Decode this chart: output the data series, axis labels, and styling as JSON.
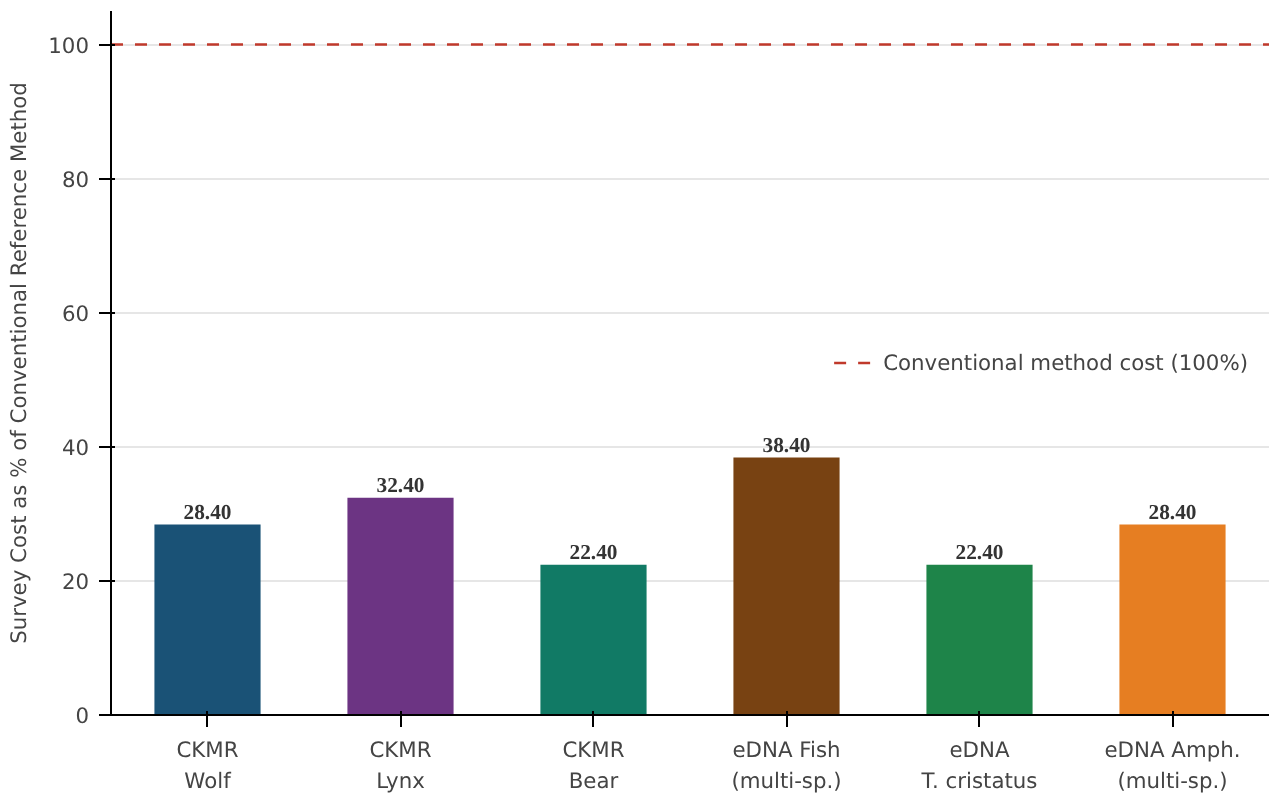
{
  "chart_data": {
    "type": "bar",
    "ylabel": "Survey Cost as % of Conventional Reference Method",
    "categories": [
      "CKMR\nWolf",
      "CKMR\nLynx",
      "CKMR\nBear",
      "eDNA Fish\n(multi-sp.)",
      "eDNA\nT. cristatus",
      "eDNA Amph.\n(multi-sp.)"
    ],
    "values": [
      28.4,
      32.4,
      22.4,
      38.4,
      22.4,
      28.4
    ],
    "value_labels": [
      "28.40",
      "32.40",
      "22.40",
      "38.40",
      "22.40",
      "28.40"
    ],
    "colors": [
      "#1a5276",
      "#6c3483",
      "#117a65",
      "#784212",
      "#1e8449",
      "#e67e22"
    ],
    "ylim": [
      0,
      105
    ],
    "yticks": [
      0,
      20,
      40,
      60,
      80,
      100
    ],
    "grid": "y",
    "legend": "right",
    "ref_lines": [
      {
        "axis": "y",
        "value": 100,
        "label": "Conventional method cost (100%)",
        "color": "#c0392b",
        "line_style": "dashed"
      }
    ]
  }
}
